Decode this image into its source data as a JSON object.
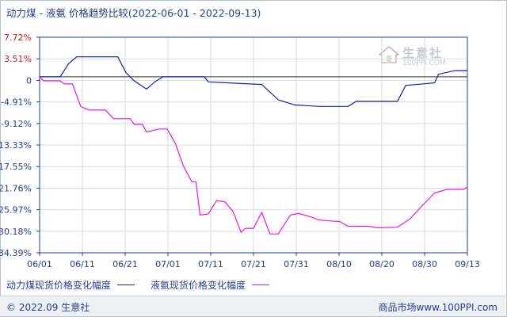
{
  "chart_data": {
    "type": "line",
    "title": "动力煤 - 液氨 价格趋势比较(2022-06-01 - 2022-09-13)",
    "x_labels": [
      "06/01",
      "06/11",
      "06/21",
      "07/01",
      "07/11",
      "07/21",
      "07/31",
      "08/10",
      "08/20",
      "08/30",
      "09/13"
    ],
    "y_ticks": [
      "7.72%",
      "3.51%",
      "0",
      "-4.91%",
      "-9.12%",
      "-13.33%",
      "-17.55%",
      "-21.76%",
      "-25.97%",
      "-30.18%",
      "-34.39%"
    ],
    "ylim": [
      -34.39,
      7.72
    ],
    "grid": true,
    "legend_position": "bottom-left",
    "series": [
      {
        "name": "动力煤现货价格变化幅度",
        "color": "#1a1aa6",
        "points": [
          [
            "06-01",
            0
          ],
          [
            "06-06",
            0
          ],
          [
            "06-08",
            2.5
          ],
          [
            "06-10",
            3.9
          ],
          [
            "06-20",
            3.9
          ],
          [
            "06-22",
            0.8
          ],
          [
            "06-24",
            -0.8
          ],
          [
            "06-27",
            -2.4
          ],
          [
            "06-29",
            -1.0
          ],
          [
            "07-01",
            0
          ],
          [
            "07-11",
            0
          ],
          [
            "07-12",
            -1.0
          ],
          [
            "07-25",
            -1.5
          ],
          [
            "07-29",
            -4.5
          ],
          [
            "08-02",
            -5.5
          ],
          [
            "08-08",
            -5.8
          ],
          [
            "08-15",
            -5.8
          ],
          [
            "08-17",
            -4.8
          ],
          [
            "08-27",
            -4.8
          ],
          [
            "08-29",
            -1.7
          ],
          [
            "09-05",
            -1.2
          ],
          [
            "09-06",
            0.5
          ],
          [
            "09-10",
            1.2
          ],
          [
            "09-13",
            1.2
          ]
        ]
      },
      {
        "name": "液氨现货价格变化幅度",
        "color": "#e617e6",
        "points": [
          [
            "06-01",
            0
          ],
          [
            "06-02",
            -0.8
          ],
          [
            "06-06",
            -0.8
          ],
          [
            "06-07",
            -1.4
          ],
          [
            "06-09",
            -1.4
          ],
          [
            "06-11",
            -5.8
          ],
          [
            "06-13",
            -6.5
          ],
          [
            "06-17",
            -6.5
          ],
          [
            "06-19",
            -8.2
          ],
          [
            "06-23",
            -8.2
          ],
          [
            "06-24",
            -9.3
          ],
          [
            "06-26",
            -9.3
          ],
          [
            "06-27",
            -10.8
          ],
          [
            "06-30",
            -10.2
          ],
          [
            "07-02",
            -10.2
          ],
          [
            "07-04",
            -13.0
          ],
          [
            "07-06",
            -17.5
          ],
          [
            "07-08",
            -20.5
          ],
          [
            "07-09",
            -20.5
          ],
          [
            "07-10",
            -27.0
          ],
          [
            "07-12",
            -26.8
          ],
          [
            "07-14",
            -24.2
          ],
          [
            "07-16",
            -24.4
          ],
          [
            "07-18",
            -26.3
          ],
          [
            "07-20",
            -30.4
          ],
          [
            "07-21",
            -29.6
          ],
          [
            "07-23",
            -29.6
          ],
          [
            "07-25",
            -26.5
          ],
          [
            "07-27",
            -30.7
          ],
          [
            "07-29",
            -30.7
          ],
          [
            "08-01",
            -27.0
          ],
          [
            "08-03",
            -26.7
          ],
          [
            "08-06",
            -27.4
          ],
          [
            "08-08",
            -28.0
          ],
          [
            "08-13",
            -28.3
          ],
          [
            "08-15",
            -29.2
          ],
          [
            "08-20",
            -29.2
          ],
          [
            "08-22",
            -29.5
          ],
          [
            "08-27",
            -29.4
          ],
          [
            "08-30",
            -27.8
          ],
          [
            "09-02",
            -25.2
          ],
          [
            "09-05",
            -22.7
          ],
          [
            "09-08",
            -22.0
          ],
          [
            "09-12",
            -22.0
          ],
          [
            "09-13",
            -21.6
          ]
        ]
      }
    ]
  },
  "footer": {
    "left": "© 2022.09 生意社",
    "right": "商品市场www.100PPI.com"
  },
  "watermark": {
    "cn": "生意社",
    "en": "100PPI.COM"
  },
  "colors": {
    "axis": "#2a3b8f",
    "grid": "#d7dde3"
  }
}
